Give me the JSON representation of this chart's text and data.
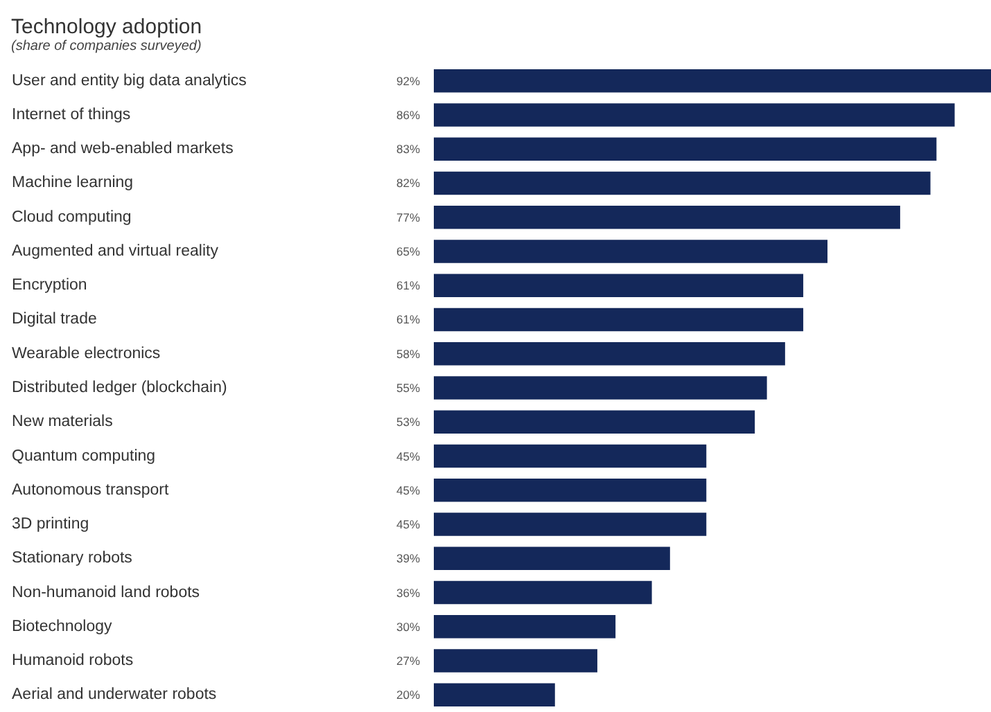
{
  "chart_data": {
    "type": "bar",
    "orientation": "horizontal",
    "title": "Technology adoption",
    "subtitle": "(share of companies surveyed)",
    "categories": [
      "User and entity big data analytics",
      "Internet of things",
      "App- and web-enabled markets",
      "Machine learning",
      "Cloud computing",
      "Augmented and virtual reality",
      "Encryption",
      "Digital trade",
      "Wearable electronics",
      "Distributed ledger (blockchain)",
      "New materials",
      "Quantum computing",
      "Autonomous transport",
      "3D printing",
      "Stationary robots",
      "Non-humanoid land robots",
      "Biotechnology",
      "Humanoid robots",
      "Aerial and underwater robots"
    ],
    "values": [
      92,
      86,
      83,
      82,
      77,
      65,
      61,
      61,
      58,
      55,
      53,
      45,
      45,
      45,
      39,
      36,
      30,
      27,
      20
    ],
    "value_labels": [
      "92%",
      "86%",
      "83%",
      "82%",
      "77%",
      "65%",
      "61%",
      "61%",
      "58%",
      "55%",
      "53%",
      "45%",
      "45%",
      "45%",
      "39%",
      "36%",
      "30%",
      "27%",
      "20%"
    ],
    "color": "#14285a"
  }
}
